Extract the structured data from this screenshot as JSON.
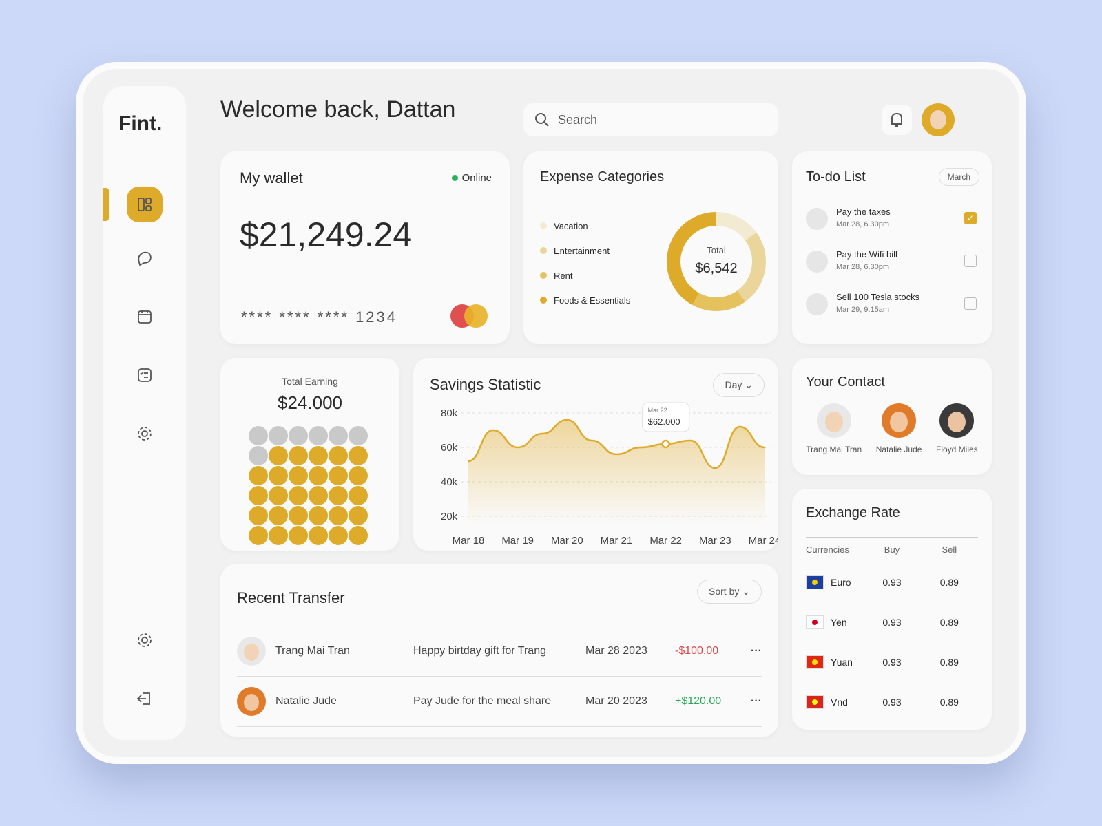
{
  "brand": "Fint.",
  "header": {
    "title": "Welcome back, Dattan",
    "search": "Search"
  },
  "wallet": {
    "title": "My wallet",
    "status": "Online",
    "balance": "$21,249.24",
    "card": "**** **** **** 1234"
  },
  "expenses": {
    "title": "Expense Categories",
    "total_label": "Total",
    "total": "$6,542",
    "categories": [
      {
        "name": "Vacation",
        "color": "#f3ead2",
        "value": 15
      },
      {
        "name": "Entertainment",
        "color": "#ead69a",
        "value": 25
      },
      {
        "name": "Rent",
        "color": "#e6c25e",
        "value": 18
      },
      {
        "name": "Foods & Essentials",
        "color": "#deaa2a",
        "value": 42
      }
    ]
  },
  "todo": {
    "title": "To-do List",
    "filter": "March",
    "items": [
      {
        "task": "Pay the taxes",
        "time": "Mar 28, 6.30pm",
        "done": true
      },
      {
        "task": "Pay the Wifi bill",
        "time": "Mar 28, 6.30pm",
        "done": false
      },
      {
        "task": "Sell 100 Tesla stocks",
        "time": "Mar 29, 9.15am",
        "done": false
      }
    ]
  },
  "earning": {
    "title": "Total Earning",
    "amount": "$24.000",
    "filled": 29,
    "total": 36
  },
  "savings": {
    "type": "line",
    "title": "Savings Statistic",
    "filter": "Day",
    "color": "#deaa2a",
    "categories": [
      "Mar 18",
      null,
      "Mar 19",
      null,
      "Mar 20",
      null,
      "Mar 21",
      null,
      "Mar 22",
      null,
      "Mar 23",
      null,
      "Mar 24"
    ],
    "values": [
      52000,
      70000,
      60000,
      68000,
      76000,
      64000,
      56000,
      60000,
      62000,
      64000,
      48000,
      72000,
      60000
    ],
    "value_labels": [
      null,
      null,
      null,
      null,
      null,
      null,
      null,
      null,
      "$62.000",
      null,
      null,
      null,
      null
    ],
    "ylim": [
      20000,
      80000
    ],
    "yticks": [
      {
        "value": 20000,
        "label": "20k"
      },
      {
        "value": 40000,
        "label": "40k"
      },
      {
        "value": 60000,
        "label": "60k"
      },
      {
        "value": 80000,
        "label": "80k"
      }
    ],
    "grid": true
  },
  "contacts": {
    "title": "Your Contact",
    "people": [
      "Trang Mai Tran",
      "Natalie Jude",
      "Floyd Miles"
    ]
  },
  "exchange": {
    "title": "Exchange Rate",
    "columns": [
      "Currencies",
      "Buy",
      "Sell"
    ],
    "rows": [
      [
        "Euro",
        0.93,
        0.89
      ],
      [
        "Yen",
        0.93,
        0.89
      ],
      [
        "Yuan",
        0.93,
        0.89
      ],
      [
        "Vnd",
        0.93,
        0.89
      ]
    ]
  },
  "transfers": {
    "title": "Recent Transfer",
    "sort": "Sort by",
    "rows": [
      {
        "name": "Trang Mai Tran",
        "note": "Happy birtday gift for Trang",
        "date": "Mar 28 2023",
        "amount": "-$100.00"
      },
      {
        "name": "Natalie Jude",
        "note": "Pay Jude for the meal share",
        "date": "Mar 20 2023",
        "amount": "+$120.00"
      }
    ]
  }
}
